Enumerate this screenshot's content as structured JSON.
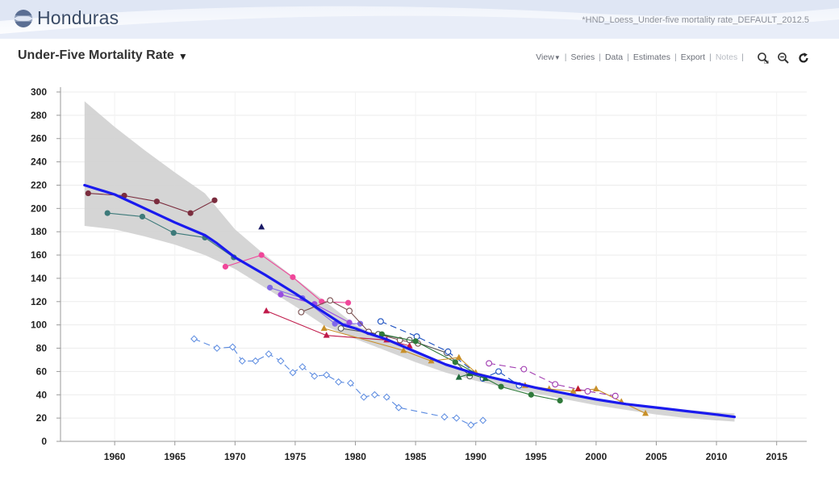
{
  "app": {
    "country": "Honduras",
    "chart_id": "*HND_Loess_Under-five mortality rate_DEFAULT_2012.5"
  },
  "page": {
    "title": "Under-Five Mortality Rate"
  },
  "menu": {
    "view": "View",
    "series": "Series",
    "data": "Data",
    "estimates": "Estimates",
    "export": "Export",
    "notes": "Notes"
  },
  "tools": {
    "zoom_region": "zoom-region-icon",
    "zoom_out": "zoom-out-icon",
    "refresh": "refresh-icon"
  },
  "colors": {
    "estimate": "#1a1aee",
    "band": "#d3d3d3"
  },
  "chart_data": {
    "type": "line",
    "title": "Under-Five Mortality Rate",
    "xlabel": "",
    "ylabel": "",
    "xlim": [
      1955.5,
      2017.5
    ],
    "ylim": [
      0,
      300
    ],
    "xticks": [
      1960,
      1965,
      1970,
      1975,
      1980,
      1985,
      1990,
      1995,
      2000,
      2005,
      2010,
      2015
    ],
    "yticks": [
      0,
      20,
      40,
      60,
      80,
      100,
      120,
      140,
      160,
      180,
      200,
      220,
      240,
      260,
      280,
      300
    ],
    "grid": true,
    "band": {
      "name": "uncertainty",
      "upper": [
        [
          1957.5,
          292
        ],
        [
          1960,
          270
        ],
        [
          1962.5,
          250
        ],
        [
          1965,
          231
        ],
        [
          1967.5,
          213
        ],
        [
          1970,
          182
        ],
        [
          1972.5,
          160
        ],
        [
          1975,
          140
        ],
        [
          1977.5,
          120
        ],
        [
          1980,
          100
        ],
        [
          1982.5,
          88
        ],
        [
          1985,
          77
        ],
        [
          1987.5,
          66
        ],
        [
          1990,
          58
        ],
        [
          1992.5,
          52
        ],
        [
          1995,
          46
        ],
        [
          1997.5,
          41
        ],
        [
          2000,
          36
        ],
        [
          2002.5,
          32
        ],
        [
          2005,
          29
        ],
        [
          2007.5,
          27
        ],
        [
          2010,
          25
        ],
        [
          2011.5,
          24
        ]
      ],
      "lower": [
        [
          1957.5,
          185
        ],
        [
          1960,
          182
        ],
        [
          1962.5,
          176
        ],
        [
          1965,
          169
        ],
        [
          1967.5,
          160
        ],
        [
          1970,
          148
        ],
        [
          1972.5,
          132
        ],
        [
          1975,
          116
        ],
        [
          1977.5,
          99
        ],
        [
          1980,
          88
        ],
        [
          1982.5,
          78
        ],
        [
          1985,
          68
        ],
        [
          1987.5,
          59
        ],
        [
          1990,
          52
        ],
        [
          1992.5,
          46
        ],
        [
          1995,
          41
        ],
        [
          1997.5,
          36
        ],
        [
          2000,
          31
        ],
        [
          2002.5,
          27
        ],
        [
          2005,
          23
        ],
        [
          2007.5,
          20
        ],
        [
          2010,
          18
        ],
        [
          2011.5,
          17
        ]
      ]
    },
    "estimate": {
      "name": "Loess estimate",
      "points": [
        [
          1957.5,
          220
        ],
        [
          1960,
          212
        ],
        [
          1962.5,
          200
        ],
        [
          1965,
          188
        ],
        [
          1967.5,
          177
        ],
        [
          1968.5,
          170
        ],
        [
          1970,
          158
        ],
        [
          1972.5,
          143
        ],
        [
          1975,
          127
        ],
        [
          1977.5,
          110
        ],
        [
          1979,
          100
        ],
        [
          1980,
          97
        ],
        [
          1981,
          93
        ],
        [
          1982.5,
          88
        ],
        [
          1985,
          77
        ],
        [
          1987.5,
          66
        ],
        [
          1990,
          58
        ],
        [
          1992.5,
          52
        ],
        [
          1995,
          46
        ],
        [
          1997.5,
          41
        ],
        [
          2000,
          36
        ],
        [
          2002.5,
          32
        ],
        [
          2005,
          29
        ],
        [
          2007.5,
          26
        ],
        [
          2010,
          23
        ],
        [
          2011.5,
          21
        ]
      ]
    },
    "series": [
      {
        "name": "s-maroon",
        "color": "#7b2d3e",
        "marker": "circle",
        "dash": false,
        "points": [
          [
            1957.8,
            213
          ],
          [
            1960.8,
            211
          ],
          [
            1963.5,
            206
          ],
          [
            1966.3,
            196
          ],
          [
            1968.3,
            207
          ]
        ]
      },
      {
        "name": "s-teal",
        "color": "#3d7a7a",
        "marker": "circle",
        "dash": false,
        "points": [
          [
            1959.4,
            196
          ],
          [
            1962.3,
            193
          ],
          [
            1964.9,
            179
          ],
          [
            1967.5,
            175
          ],
          [
            1969.9,
            158
          ]
        ]
      },
      {
        "name": "s-navy-triangle",
        "color": "#1a1a66",
        "marker": "triangle",
        "dash": false,
        "points": [
          [
            1972.2,
            184
          ]
        ]
      },
      {
        "name": "s-pink",
        "color": "#f0479a",
        "marker": "circle",
        "dash": false,
        "points": [
          [
            1969.2,
            150
          ],
          [
            1972.2,
            160
          ],
          [
            1974.8,
            141
          ],
          [
            1977.2,
            120
          ],
          [
            1979.4,
            119
          ]
        ]
      },
      {
        "name": "s-purple",
        "color": "#8068e8",
        "marker": "circle",
        "dash": false,
        "points": [
          [
            1972.9,
            132
          ],
          [
            1975.6,
            123
          ],
          [
            1978.3,
            101
          ],
          [
            1980.4,
            101
          ]
        ]
      },
      {
        "name": "s-violet",
        "color": "#9a4be0",
        "marker": "circle",
        "dash": false,
        "points": [
          [
            1973.8,
            126
          ],
          [
            1976.6,
            118
          ],
          [
            1979.5,
            102
          ]
        ]
      },
      {
        "name": "s-crimson-triangle",
        "color": "#c01a4a",
        "marker": "triangle",
        "dash": false,
        "points": [
          [
            1972.6,
            112
          ],
          [
            1977.6,
            91
          ],
          [
            1982.6,
            87
          ],
          [
            1984.5,
            82
          ]
        ]
      },
      {
        "name": "s-brown-open",
        "color": "#7a5050",
        "marker": "open-circle",
        "dash": false,
        "points": [
          [
            1975.5,
            111
          ],
          [
            1977.9,
            121
          ],
          [
            1979.5,
            112
          ],
          [
            1981.1,
            94
          ],
          [
            1983.7,
            87
          ],
          [
            1985.2,
            84
          ]
        ]
      },
      {
        "name": "s-gray-open",
        "color": "#555555",
        "marker": "open-circle",
        "dash": false,
        "points": [
          [
            1978.8,
            97
          ],
          [
            1981.9,
            92
          ],
          [
            1984.5,
            87
          ],
          [
            1987.6,
            76
          ],
          [
            1989.5,
            56
          ]
        ]
      },
      {
        "name": "s-blue-open-dash",
        "color": "#1a4fc0",
        "marker": "open-circle",
        "dash": true,
        "points": [
          [
            1982.1,
            103
          ],
          [
            1985.1,
            90
          ],
          [
            1987.7,
            77
          ],
          [
            1990.6,
            54
          ],
          [
            1991.9,
            60
          ],
          [
            1993.6,
            48
          ]
        ]
      },
      {
        "name": "s-green",
        "color": "#2f7a3a",
        "marker": "circle",
        "dash": false,
        "points": [
          [
            1982.2,
            92
          ],
          [
            1985,
            86
          ],
          [
            1988.3,
            68
          ],
          [
            1992.1,
            47
          ],
          [
            1994.6,
            40
          ],
          [
            1997,
            35
          ]
        ]
      },
      {
        "name": "s-gold-triangle",
        "color": "#c8902a",
        "marker": "triangle",
        "dash": false,
        "points": [
          [
            1977.4,
            97
          ],
          [
            1984,
            78
          ],
          [
            1986.3,
            69
          ],
          [
            1988.6,
            72
          ],
          [
            1990,
            59
          ],
          [
            1994.1,
            48
          ],
          [
            1996.1,
            45
          ],
          [
            1998.1,
            43
          ],
          [
            2000,
            45
          ],
          [
            2002.1,
            34
          ],
          [
            2004.1,
            24
          ]
        ]
      },
      {
        "name": "s-darkgreen-triangle",
        "color": "#1f6b3a",
        "marker": "triangle",
        "dash": false,
        "points": [
          [
            1988.6,
            55
          ],
          [
            1989.5,
            58
          ],
          [
            1990.8,
            54
          ]
        ]
      },
      {
        "name": "s-magenta-open-dash",
        "color": "#a03ab0",
        "marker": "open-circle",
        "dash": true,
        "points": [
          [
            1991.1,
            67
          ],
          [
            1994,
            62
          ],
          [
            1996.6,
            49
          ],
          [
            1999.3,
            43
          ],
          [
            2001.6,
            39
          ]
        ]
      },
      {
        "name": "s-red-triangle",
        "color": "#c01a2a",
        "marker": "triangle",
        "dash": false,
        "points": [
          [
            1998.5,
            45
          ]
        ]
      },
      {
        "name": "s-lightblue-diamond-dash",
        "color": "#5a8ae0",
        "marker": "open-diamond",
        "dash": true,
        "points": [
          [
            1966.6,
            88
          ],
          [
            1968.5,
            80
          ],
          [
            1969.8,
            81
          ],
          [
            1970.6,
            69
          ],
          [
            1971.7,
            69
          ],
          [
            1972.8,
            75
          ],
          [
            1973.8,
            69
          ],
          [
            1974.8,
            59
          ],
          [
            1975.6,
            64
          ],
          [
            1976.6,
            56
          ],
          [
            1977.6,
            57
          ],
          [
            1978.6,
            51
          ],
          [
            1979.6,
            50
          ],
          [
            1980.7,
            38
          ],
          [
            1981.6,
            40
          ],
          [
            1982.6,
            38
          ],
          [
            1983.6,
            29
          ],
          [
            1987.4,
            21
          ],
          [
            1988.4,
            20
          ],
          [
            1989.6,
            14
          ],
          [
            1990.6,
            18
          ]
        ]
      }
    ]
  }
}
